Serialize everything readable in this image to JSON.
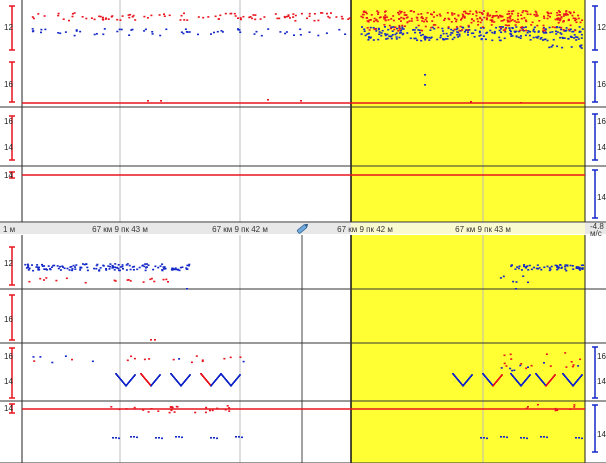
{
  "upper_view": {
    "lanes": [
      {
        "name": "lane-1",
        "left_labels": [
          "12",
          "16"
        ],
        "right_labels": [
          "12",
          "16"
        ]
      },
      {
        "name": "lane-2",
        "left_labels": [
          "16",
          "14"
        ],
        "right_labels": [
          "16",
          "14"
        ]
      },
      {
        "name": "lane-3",
        "left_labels": [
          "14"
        ],
        "right_labels": [
          "14"
        ]
      }
    ]
  },
  "ruler": {
    "start_label": "1 м",
    "marks": [
      "67 км 9 пк 43 м",
      "67 км 9 пк 42 м",
      "67 км 9 пк 42 м",
      "67 км 9 пк 43 м"
    ],
    "end_label": "-4.8",
    "end_unit": "м/с",
    "scroll_icon": "pencil-icon"
  },
  "lower_view": {
    "lanes": [
      {
        "name": "lane-1",
        "left_labels": [
          "12"
        ],
        "right_labels": []
      },
      {
        "name": "lane-2",
        "left_labels": [
          "16"
        ],
        "right_labels": []
      },
      {
        "name": "lane-3",
        "left_labels": [
          "16",
          "14"
        ],
        "right_labels": [
          "16",
          "14"
        ]
      },
      {
        "name": "lane-4",
        "left_labels": [
          "14"
        ],
        "right_labels": [
          "14"
        ]
      }
    ]
  },
  "colors": {
    "highlight": "#ffff33",
    "red_echo": "#e8141e",
    "blue_echo": "#1428c8",
    "grid": "#bdbdbd",
    "divider": "#222222"
  }
}
